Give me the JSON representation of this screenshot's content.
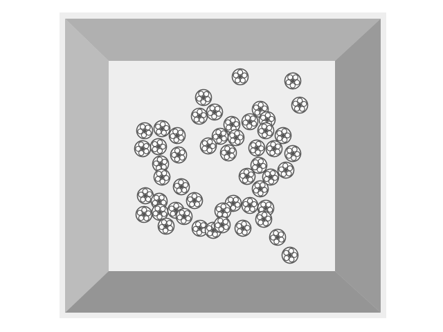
{
  "scene": {
    "description_type": "top-down view of a square tray with raised beveled walls containing scattered circular flower-patterned disks",
    "colors": {
      "outer_frame": "#eeeeee",
      "wall_top": "#b0b0b0",
      "wall_left": "#bcbcbc",
      "wall_right": "#9a9a9a",
      "wall_bottom": "#959595",
      "floor": "#eeeeee",
      "disk_stroke": "#555555",
      "disk_fill": "#ffffff",
      "disk_center": "#555555"
    },
    "disk_icon": "rosette-disk-icon"
  }
}
